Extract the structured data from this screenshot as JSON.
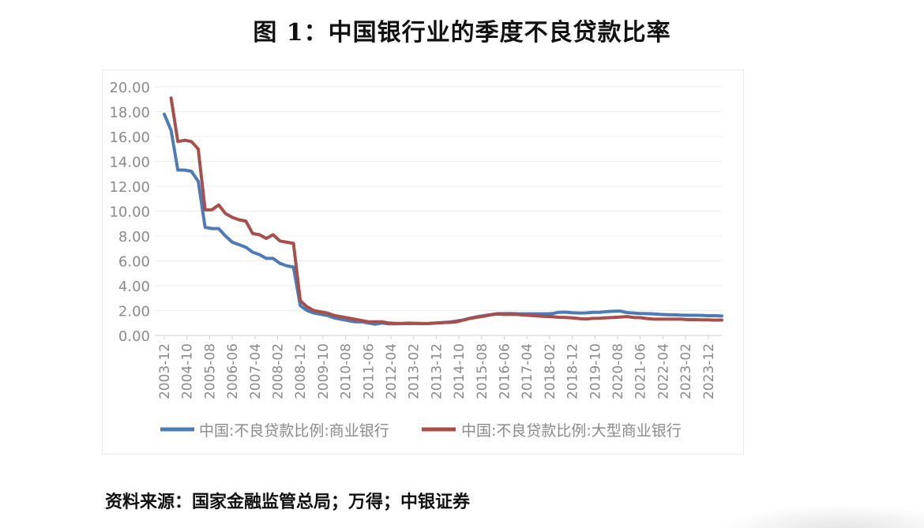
{
  "title": "图 1：中国银行业的季度不良贷款比率",
  "source": "资料来源：国家金融监管总局；万得；中银证券",
  "chart_data": {
    "type": "line",
    "ylim": [
      0,
      20
    ],
    "y_ticks": [
      "20.00",
      "18.00",
      "16.00",
      "14.00",
      "12.00",
      "10.00",
      "8.00",
      "6.00",
      "4.00",
      "2.00",
      "0.00"
    ],
    "x_tick_labels": [
      "2003-12",
      "2004-10",
      "2005-08",
      "2006-06",
      "2007-04",
      "2008-02",
      "2008-12",
      "2009-10",
      "2010-08",
      "2011-06",
      "2012-04",
      "2013-02",
      "2013-12",
      "2014-10",
      "2015-08",
      "2016-06",
      "2017-04",
      "2018-02",
      "2018-12",
      "2019-10",
      "2020-08",
      "2021-06",
      "2022-04",
      "2023-02",
      "2023-12"
    ],
    "legend_position": "bottom",
    "grid": true,
    "series": [
      {
        "name": "中国:不良贷款比例:商业银行",
        "color": "#4e7ab5",
        "points": [
          [
            "2003-12",
            17.8
          ],
          [
            "2004-03",
            16.5
          ],
          [
            "2004-06",
            13.3
          ],
          [
            "2004-09",
            13.3
          ],
          [
            "2004-12",
            13.2
          ],
          [
            "2005-03",
            12.4
          ],
          [
            "2005-06",
            8.7
          ],
          [
            "2005-09",
            8.6
          ],
          [
            "2005-12",
            8.6
          ],
          [
            "2006-03",
            8.0
          ],
          [
            "2006-06",
            7.5
          ],
          [
            "2006-09",
            7.3
          ],
          [
            "2006-12",
            7.1
          ],
          [
            "2007-03",
            6.7
          ],
          [
            "2007-06",
            6.5
          ],
          [
            "2007-09",
            6.2
          ],
          [
            "2007-12",
            6.2
          ],
          [
            "2008-03",
            5.8
          ],
          [
            "2008-06",
            5.6
          ],
          [
            "2008-09",
            5.5
          ],
          [
            "2008-12",
            2.4
          ],
          [
            "2009-03",
            2.0
          ],
          [
            "2009-06",
            1.8
          ],
          [
            "2009-09",
            1.7
          ],
          [
            "2009-12",
            1.6
          ],
          [
            "2010-03",
            1.4
          ],
          [
            "2010-06",
            1.3
          ],
          [
            "2010-09",
            1.2
          ],
          [
            "2010-12",
            1.1
          ],
          [
            "2011-03",
            1.1
          ],
          [
            "2011-06",
            1.0
          ],
          [
            "2011-09",
            0.9
          ],
          [
            "2011-12",
            1.0
          ],
          [
            "2012-03",
            0.94
          ],
          [
            "2012-06",
            0.94
          ],
          [
            "2012-09",
            0.95
          ],
          [
            "2012-12",
            0.95
          ],
          [
            "2013-03",
            0.96
          ],
          [
            "2013-06",
            0.96
          ],
          [
            "2013-09",
            0.97
          ],
          [
            "2013-12",
            1.0
          ],
          [
            "2014-03",
            1.04
          ],
          [
            "2014-06",
            1.08
          ],
          [
            "2014-09",
            1.16
          ],
          [
            "2014-12",
            1.25
          ],
          [
            "2015-03",
            1.39
          ],
          [
            "2015-06",
            1.5
          ],
          [
            "2015-09",
            1.59
          ],
          [
            "2015-12",
            1.67
          ],
          [
            "2016-03",
            1.75
          ],
          [
            "2016-06",
            1.75
          ],
          [
            "2016-09",
            1.76
          ],
          [
            "2016-12",
            1.74
          ],
          [
            "2017-03",
            1.74
          ],
          [
            "2017-06",
            1.74
          ],
          [
            "2017-09",
            1.74
          ],
          [
            "2017-12",
            1.74
          ],
          [
            "2018-03",
            1.75
          ],
          [
            "2018-06",
            1.86
          ],
          [
            "2018-09",
            1.87
          ],
          [
            "2018-12",
            1.83
          ],
          [
            "2019-03",
            1.8
          ],
          [
            "2019-06",
            1.81
          ],
          [
            "2019-09",
            1.86
          ],
          [
            "2019-12",
            1.86
          ],
          [
            "2020-03",
            1.91
          ],
          [
            "2020-06",
            1.94
          ],
          [
            "2020-09",
            1.96
          ],
          [
            "2020-12",
            1.84
          ],
          [
            "2021-03",
            1.8
          ],
          [
            "2021-06",
            1.76
          ],
          [
            "2021-09",
            1.75
          ],
          [
            "2021-12",
            1.73
          ],
          [
            "2022-03",
            1.69
          ],
          [
            "2022-06",
            1.67
          ],
          [
            "2022-09",
            1.66
          ],
          [
            "2022-12",
            1.63
          ],
          [
            "2023-03",
            1.62
          ],
          [
            "2023-06",
            1.62
          ],
          [
            "2023-09",
            1.61
          ],
          [
            "2023-12",
            1.59
          ],
          [
            "2024-03",
            1.59
          ],
          [
            "2024-06",
            1.56
          ]
        ]
      },
      {
        "name": "中国:不良贷款比例:大型商业银行",
        "color": "#a84e4b",
        "points": [
          [
            "2004-03",
            19.1
          ],
          [
            "2004-06",
            15.6
          ],
          [
            "2004-09",
            15.7
          ],
          [
            "2004-12",
            15.6
          ],
          [
            "2005-03",
            15.0
          ],
          [
            "2005-06",
            10.1
          ],
          [
            "2005-09",
            10.1
          ],
          [
            "2005-12",
            10.5
          ],
          [
            "2006-03",
            9.8
          ],
          [
            "2006-06",
            9.5
          ],
          [
            "2006-09",
            9.3
          ],
          [
            "2006-12",
            9.2
          ],
          [
            "2007-03",
            8.2
          ],
          [
            "2007-06",
            8.1
          ],
          [
            "2007-09",
            7.8
          ],
          [
            "2007-12",
            8.1
          ],
          [
            "2008-03",
            7.6
          ],
          [
            "2008-06",
            7.5
          ],
          [
            "2008-09",
            7.4
          ],
          [
            "2008-12",
            2.8
          ],
          [
            "2009-03",
            2.3
          ],
          [
            "2009-06",
            2.0
          ],
          [
            "2009-09",
            1.9
          ],
          [
            "2009-12",
            1.8
          ],
          [
            "2010-03",
            1.6
          ],
          [
            "2010-06",
            1.5
          ],
          [
            "2010-09",
            1.4
          ],
          [
            "2010-12",
            1.3
          ],
          [
            "2011-03",
            1.2
          ],
          [
            "2011-06",
            1.1
          ],
          [
            "2011-09",
            1.1
          ],
          [
            "2011-12",
            1.1
          ],
          [
            "2012-03",
            1.0
          ],
          [
            "2012-06",
            0.97
          ],
          [
            "2012-09",
            0.97
          ],
          [
            "2012-12",
            0.99
          ],
          [
            "2013-03",
            0.97
          ],
          [
            "2013-06",
            0.95
          ],
          [
            "2013-09",
            0.96
          ],
          [
            "2013-12",
            1.0
          ],
          [
            "2014-03",
            1.03
          ],
          [
            "2014-06",
            1.05
          ],
          [
            "2014-09",
            1.1
          ],
          [
            "2014-12",
            1.23
          ],
          [
            "2015-03",
            1.37
          ],
          [
            "2015-06",
            1.46
          ],
          [
            "2015-09",
            1.54
          ],
          [
            "2015-12",
            1.66
          ],
          [
            "2016-03",
            1.72
          ],
          [
            "2016-06",
            1.69
          ],
          [
            "2016-09",
            1.69
          ],
          [
            "2016-12",
            1.68
          ],
          [
            "2017-03",
            1.64
          ],
          [
            "2017-06",
            1.6
          ],
          [
            "2017-09",
            1.56
          ],
          [
            "2017-12",
            1.53
          ],
          [
            "2018-03",
            1.51
          ],
          [
            "2018-06",
            1.46
          ],
          [
            "2018-09",
            1.45
          ],
          [
            "2018-12",
            1.41
          ],
          [
            "2019-03",
            1.36
          ],
          [
            "2019-06",
            1.32
          ],
          [
            "2019-09",
            1.37
          ],
          [
            "2019-12",
            1.38
          ],
          [
            "2020-03",
            1.42
          ],
          [
            "2020-06",
            1.44
          ],
          [
            "2020-09",
            1.48
          ],
          [
            "2020-12",
            1.52
          ],
          [
            "2021-03",
            1.45
          ],
          [
            "2021-06",
            1.43
          ],
          [
            "2021-09",
            1.36
          ],
          [
            "2021-12",
            1.31
          ],
          [
            "2022-03",
            1.31
          ],
          [
            "2022-06",
            1.31
          ],
          [
            "2022-09",
            1.31
          ],
          [
            "2022-12",
            1.31
          ],
          [
            "2023-03",
            1.27
          ],
          [
            "2023-06",
            1.27
          ],
          [
            "2023-09",
            1.26
          ],
          [
            "2023-12",
            1.26
          ],
          [
            "2024-03",
            1.23
          ],
          [
            "2024-06",
            1.24
          ]
        ]
      }
    ]
  }
}
